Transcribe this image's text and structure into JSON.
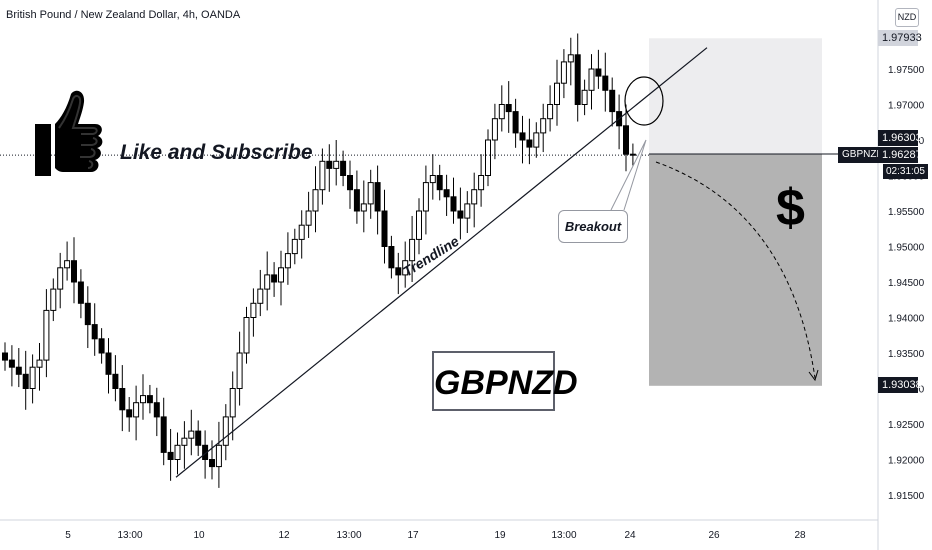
{
  "header": {
    "title": "British Pound / New Zealand Dollar, 4h, OANDA",
    "currency": "NZD"
  },
  "annotations": {
    "like_subscribe": "Like and Subscribe",
    "breakout": "Breakout",
    "trendline": "Trendline",
    "ticker": "GBPNZD",
    "dollar": "$"
  },
  "price_scale": {
    "tags": {
      "target_top": "1.97933",
      "entry_high": "1.96303",
      "last_price": "1.96287",
      "target_bottom": "1.93038",
      "symbol": "GBPNZD",
      "countdown": "02:31:05"
    }
  },
  "colors": {
    "up_candle": "#ffffff",
    "down_candle": "#000000",
    "candle_outline": "#000000",
    "target_zone_light": "#ededef",
    "target_zone_dark": "#b3b3b3"
  },
  "chart_data": {
    "type": "candlestick",
    "timeframe": "4h",
    "symbol": "GBPNZD",
    "x_tick_labels": [
      "5",
      "13:00",
      "10",
      "12",
      "13:00",
      "17",
      "19",
      "13:00",
      "24",
      "26",
      "28"
    ],
    "y_tick_labels": [
      "1.97500",
      "1.97000",
      "1.96500",
      "1.96000",
      "1.95500",
      "1.95000",
      "1.94500",
      "1.94000",
      "1.93500",
      "1.93000",
      "1.92500",
      "1.92000",
      "1.91500"
    ],
    "ylim": [
      1.911,
      1.9835
    ],
    "close_path": [
      1.934,
      1.933,
      1.932,
      1.93,
      1.933,
      1.934,
      1.941,
      1.944,
      1.947,
      1.948,
      1.945,
      1.942,
      1.939,
      1.937,
      1.935,
      1.932,
      1.93,
      1.927,
      1.926,
      1.928,
      1.929,
      1.928,
      1.926,
      1.921,
      1.92,
      1.922,
      1.923,
      1.924,
      1.922,
      1.92,
      1.919,
      1.922,
      1.926,
      1.93,
      1.935,
      1.94,
      1.942,
      1.944,
      1.946,
      1.945,
      1.947,
      1.949,
      1.951,
      1.953,
      1.955,
      1.958,
      1.962,
      1.961,
      1.962,
      1.96,
      1.958,
      1.955,
      1.956,
      1.959,
      1.955,
      1.95,
      1.947,
      1.946,
      1.948,
      1.951,
      1.955,
      1.959,
      1.96,
      1.958,
      1.957,
      1.955,
      1.954,
      1.956,
      1.958,
      1.96,
      1.965,
      1.968,
      1.97,
      1.969,
      1.966,
      1.965,
      1.964,
      1.966,
      1.968,
      1.97,
      1.973,
      1.976,
      1.977,
      1.97,
      1.972,
      1.975,
      1.974,
      1.972,
      1.969,
      1.967,
      1.963,
      1.9629
    ],
    "trendline": {
      "from": [
        1.9175
      ],
      "to": [
        1.978
      ]
    },
    "target_zone": {
      "top": 1.97933,
      "entry": 1.96303,
      "bottom": 1.93038
    },
    "projection": {
      "from": 1.96287,
      "to": 1.9305
    }
  }
}
